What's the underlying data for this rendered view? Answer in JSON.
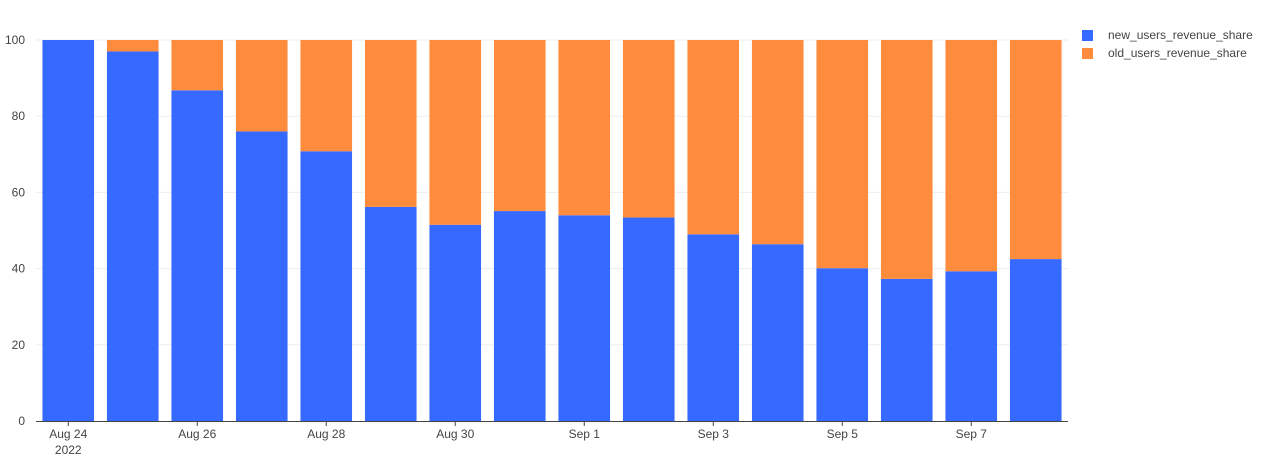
{
  "chart_data": {
    "type": "bar",
    "stacked": true,
    "categories": [
      "2022-08-24",
      "2022-08-25",
      "2022-08-26",
      "2022-08-27",
      "2022-08-28",
      "2022-08-29",
      "2022-08-30",
      "2022-08-31",
      "2022-09-01",
      "2022-09-02",
      "2022-09-03",
      "2022-09-04",
      "2022-09-05",
      "2022-09-06",
      "2022-09-07",
      "2022-09-08"
    ],
    "x_tick_labels": [
      {
        "category": "2022-08-24",
        "label": "Aug 24",
        "sublabel": "2022"
      },
      {
        "category": "2022-08-26",
        "label": "Aug 26"
      },
      {
        "category": "2022-08-28",
        "label": "Aug 28"
      },
      {
        "category": "2022-08-30",
        "label": "Aug 30"
      },
      {
        "category": "2022-09-01",
        "label": "Sep 1"
      },
      {
        "category": "2022-09-03",
        "label": "Sep 3"
      },
      {
        "category": "2022-09-05",
        "label": "Sep 5"
      },
      {
        "category": "2022-09-07",
        "label": "Sep 7"
      }
    ],
    "series": [
      {
        "name": "new_users_revenue_share",
        "color": "#3669ff",
        "values": [
          100,
          97,
          86.8,
          76,
          70.8,
          56.2,
          51.5,
          55.1,
          54,
          53.4,
          49,
          46.4,
          40.1,
          37.3,
          39.3,
          42.5
        ]
      },
      {
        "name": "old_users_revenue_share",
        "color": "#ff8c3c",
        "values": [
          0,
          3,
          13.2,
          24,
          29.2,
          43.8,
          48.5,
          44.9,
          46,
          46.6,
          51,
          53.6,
          59.9,
          62.7,
          60.7,
          57.5
        ]
      }
    ],
    "yticks": [
      0,
      20,
      40,
      60,
      80,
      100
    ],
    "ylim": [
      0,
      100
    ],
    "grid": true,
    "legend_position": "top-right",
    "title": "",
    "xlabel": "",
    "ylabel": ""
  }
}
